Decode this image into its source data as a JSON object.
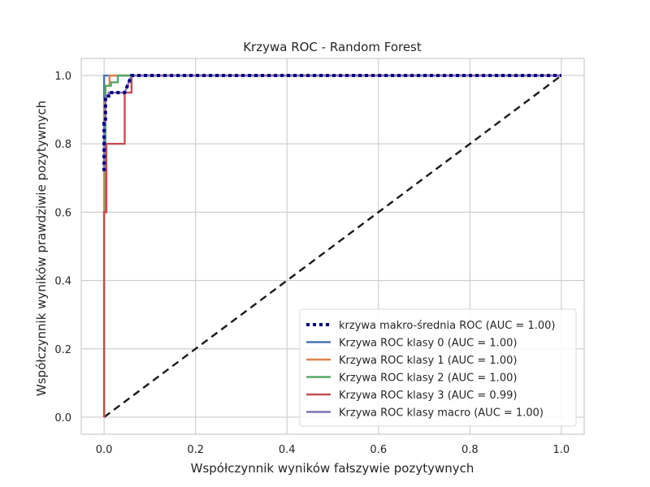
{
  "chart_data": {
    "type": "line",
    "title": "Krzywa ROC - Random Forest",
    "xlabel": "Współczynnik wyników fałszywie pozytywnych",
    "ylabel": "Współczynnik wyników prawdziwie pozytywnych",
    "xlim": [
      -0.05,
      1.05
    ],
    "ylim": [
      -0.05,
      1.05
    ],
    "xticks": [
      0.0,
      0.2,
      0.4,
      0.6,
      0.8,
      1.0
    ],
    "yticks": [
      0.0,
      0.2,
      0.4,
      0.6,
      0.8,
      1.0
    ],
    "xtick_labels": [
      "0.0",
      "0.2",
      "0.4",
      "0.6",
      "0.8",
      "1.0"
    ],
    "ytick_labels": [
      "0.0",
      "0.2",
      "0.4",
      "0.6",
      "0.8",
      "1.0"
    ],
    "grid": true,
    "legend_position": "lower-right",
    "series": [
      {
        "name": "krzywa makro-średnia ROC (AUC = 1.00)",
        "color": "#000080",
        "style": "dotted",
        "x": [
          0.0,
          0.0,
          0.003,
          0.003,
          0.01,
          0.01,
          0.045,
          0.06,
          1.0
        ],
        "y": [
          0.72,
          0.86,
          0.86,
          0.94,
          0.94,
          0.95,
          0.95,
          1.0,
          1.0
        ]
      },
      {
        "name": "Krzywa ROC klasy 0 (AUC = 1.00)",
        "color": "#4C72B0",
        "style": "solid",
        "x": [
          0.0,
          0.0,
          1.0
        ],
        "y": [
          0.0,
          1.0,
          1.0
        ]
      },
      {
        "name": "Krzywa ROC klasy 1 (AUC = 1.00)",
        "color": "#DD8452",
        "style": "solid",
        "x": [
          0.0,
          0.0,
          0.003,
          0.003,
          0.012,
          0.012,
          1.0
        ],
        "y": [
          0.0,
          0.93,
          0.93,
          0.97,
          0.97,
          1.0,
          1.0
        ]
      },
      {
        "name": "Krzywa ROC klasy 2 (AUC = 1.00)",
        "color": "#55A868",
        "style": "solid",
        "x": [
          0.0,
          0.0,
          0.003,
          0.003,
          0.015,
          0.015,
          0.03,
          0.03,
          1.0
        ],
        "y": [
          0.0,
          0.6,
          0.6,
          0.97,
          0.97,
          0.98,
          0.98,
          1.0,
          1.0
        ]
      },
      {
        "name": "Krzywa ROC klasy 3 (AUC = 0.99)",
        "color": "#C44E52",
        "style": "solid",
        "x": [
          0.0,
          0.0,
          0.005,
          0.005,
          0.045,
          0.045,
          0.06,
          0.06,
          1.0
        ],
        "y": [
          0.0,
          0.6,
          0.6,
          0.8,
          0.8,
          0.95,
          0.95,
          1.0,
          1.0
        ]
      },
      {
        "name": "Krzywa ROC klasy macro (AUC = 1.00)",
        "color": "#8172B3",
        "style": "solid",
        "x": [
          0.0,
          0.0,
          0.003,
          0.003,
          0.01,
          0.01,
          0.045,
          0.06,
          1.0
        ],
        "y": [
          0.72,
          0.86,
          0.86,
          0.94,
          0.94,
          0.95,
          0.95,
          1.0,
          1.0
        ]
      }
    ],
    "reference_line": {
      "color": "#1a1a1a",
      "style": "dashed",
      "x": [
        0.0,
        1.0
      ],
      "y": [
        0.0,
        1.0
      ]
    }
  }
}
